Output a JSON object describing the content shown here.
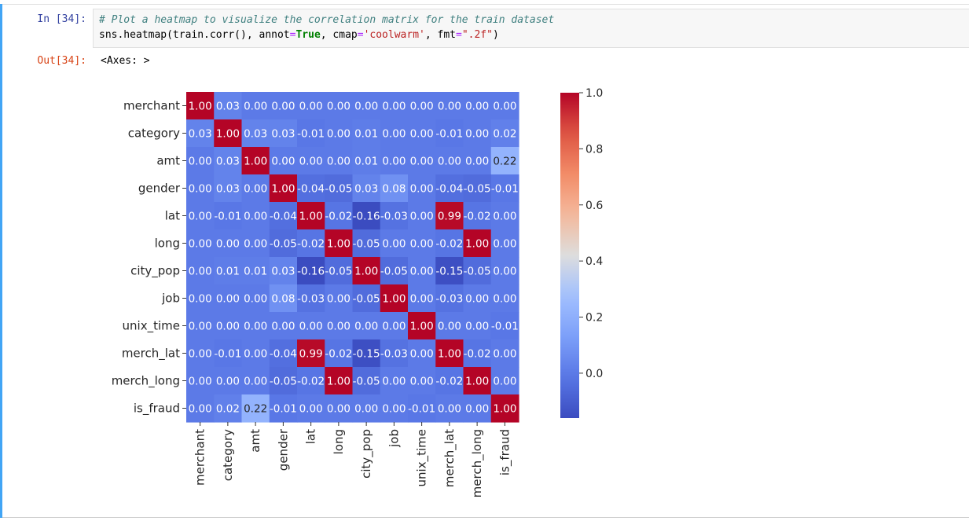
{
  "notebook": {
    "input_prompt": "In [34]:",
    "output_prompt": "Out[34]:",
    "code_comment": "# Plot a heatmap to visualize the correlation matrix for the train dataset",
    "code": {
      "p1": "sns.heatmap(train.corr(), annot",
      "eq1": "=",
      "kw_true": "True",
      "p2": ", cmap",
      "eq2": "=",
      "s1": "'coolwarm'",
      "p3": ", fmt",
      "eq3": "=",
      "s2": "\".2f\"",
      "p4": ")"
    },
    "output_text": "<Axes: >"
  },
  "chart_data": {
    "type": "heatmap",
    "title": "",
    "xlabel": "",
    "ylabel": "",
    "colormap": "coolwarm",
    "fmt": ".2f",
    "labels": [
      "merchant",
      "category",
      "amt",
      "gender",
      "lat",
      "long",
      "city_pop",
      "job",
      "unix_time",
      "merch_lat",
      "merch_long",
      "is_fraud"
    ],
    "matrix": [
      [
        1.0,
        0.03,
        -0.0,
        0.0,
        -0.0,
        -0.0,
        0.0,
        0.0,
        -0.0,
        -0.0,
        -0.0,
        -0.0
      ],
      [
        0.03,
        1.0,
        0.03,
        0.03,
        -0.01,
        -0.0,
        0.01,
        0.0,
        0.0,
        -0.01,
        -0.0,
        0.02
      ],
      [
        -0.0,
        0.03,
        1.0,
        -0.0,
        -0.0,
        -0.0,
        0.01,
        -0.0,
        -0.0,
        -0.0,
        -0.0,
        0.22
      ],
      [
        0.0,
        0.03,
        -0.0,
        1.0,
        -0.04,
        -0.05,
        0.03,
        0.08,
        0.0,
        -0.04,
        -0.05,
        -0.01
      ],
      [
        -0.0,
        -0.01,
        -0.0,
        -0.04,
        1.0,
        -0.02,
        -0.16,
        -0.03,
        0.0,
        0.99,
        -0.02,
        0.0
      ],
      [
        -0.0,
        -0.0,
        -0.0,
        -0.05,
        -0.02,
        1.0,
        -0.05,
        -0.0,
        -0.0,
        -0.02,
        1.0,
        0.0
      ],
      [
        0.0,
        0.01,
        0.01,
        0.03,
        -0.16,
        -0.05,
        1.0,
        -0.05,
        -0.0,
        -0.15,
        -0.05,
        0.0
      ],
      [
        0.0,
        0.0,
        -0.0,
        0.08,
        -0.03,
        -0.0,
        -0.05,
        1.0,
        0.0,
        -0.03,
        -0.0,
        -0.0
      ],
      [
        -0.0,
        0.0,
        -0.0,
        0.0,
        0.0,
        -0.0,
        -0.0,
        0.0,
        1.0,
        0.0,
        -0.0,
        -0.01
      ],
      [
        -0.0,
        -0.01,
        -0.0,
        -0.04,
        0.99,
        -0.02,
        -0.15,
        -0.03,
        0.0,
        1.0,
        -0.02,
        0.0
      ],
      [
        -0.0,
        -0.0,
        -0.0,
        -0.05,
        -0.02,
        1.0,
        -0.05,
        -0.0,
        -0.0,
        -0.02,
        1.0,
        0.0
      ],
      [
        -0.0,
        0.02,
        0.22,
        -0.01,
        0.0,
        0.0,
        0.0,
        -0.0,
        -0.01,
        0.0,
        0.0,
        1.0
      ]
    ],
    "colorbar": {
      "vmin": -0.16,
      "vmax": 1.0,
      "ticks": [
        1.0,
        0.8,
        0.6,
        0.4,
        0.2,
        0.0
      ],
      "tick_labels": [
        "1.0",
        "0.8",
        "0.6",
        "0.4",
        "0.2",
        "0.0"
      ]
    }
  }
}
